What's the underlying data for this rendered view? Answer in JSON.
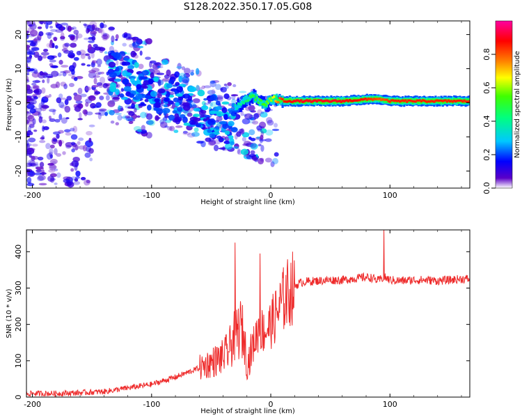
{
  "title": "S128.2022.350.17.05.G08",
  "chart_data": [
    {
      "type": "heatmap",
      "xlabel": "Height of straight line (km)",
      "ylabel": "Frequency (Hz)",
      "xlim": [
        -205,
        167
      ],
      "ylim": [
        -25,
        24
      ],
      "xticks": [
        -200,
        -100,
        0,
        100
      ],
      "yticks": [
        -20,
        -10,
        0,
        10,
        20
      ],
      "colorbar": {
        "label": "Normalized spectral amplitude",
        "range": [
          0.0,
          1.0
        ],
        "ticks": [
          0.0,
          0.2,
          0.4,
          0.6,
          0.8
        ],
        "colors": [
          "#ffffff",
          "#5a00c8",
          "#0000ff",
          "#00c8ff",
          "#00ff80",
          "#40ff00",
          "#ffff00",
          "#ff8000",
          "#ff0000",
          "#ff00a0"
        ]
      },
      "trace": {
        "description": "dominant spectral line",
        "x": [
          -30,
          -25,
          -20,
          -15,
          -10,
          -5,
          0,
          5,
          10,
          20,
          40,
          60,
          80,
          90,
          95,
          100,
          120,
          140,
          167
        ],
        "y": [
          -1.5,
          -0.5,
          1.0,
          2.0,
          0.5,
          -0.5,
          1.0,
          0.8,
          0.5,
          0.5,
          0.5,
          0.5,
          1.0,
          1.2,
          0.8,
          0.5,
          0.5,
          0.5,
          0.5
        ],
        "amplitude": [
          0.35,
          0.4,
          0.45,
          0.5,
          0.5,
          0.55,
          0.6,
          0.75,
          0.85,
          0.9,
          0.9,
          0.9,
          0.85,
          0.8,
          0.8,
          0.85,
          0.85,
          0.85,
          0.85
        ]
      }
    },
    {
      "type": "line",
      "xlabel": "Height of straight line (km)",
      "ylabel": "SNR (10 * v/v)",
      "xlim": [
        -205,
        167
      ],
      "ylim": [
        0,
        460
      ],
      "xticks": [
        -200,
        -100,
        0,
        100
      ],
      "yticks": [
        0,
        100,
        200,
        300,
        400
      ],
      "color": "#ee2a2a",
      "series": [
        {
          "x": [
            -205,
            -180,
            -160,
            -140,
            -120,
            -100,
            -80,
            -60,
            -50,
            -40,
            -35,
            -30,
            -25,
            -22,
            -20,
            -15,
            -10,
            -5,
            0,
            5,
            10,
            15,
            20,
            25,
            30,
            40,
            50,
            60,
            70,
            80,
            85,
            90,
            95,
            100,
            110,
            120,
            130,
            140,
            150,
            160,
            167
          ],
          "y": [
            10,
            10,
            12,
            15,
            25,
            35,
            55,
            80,
            95,
            110,
            130,
            170,
            190,
            160,
            85,
            140,
            190,
            180,
            200,
            230,
            265,
            290,
            305,
            315,
            318,
            320,
            322,
            322,
            326,
            330,
            328,
            320,
            330,
            322,
            320,
            322,
            322,
            320,
            322,
            325,
            325
          ]
        }
      ],
      "spikes": [
        {
          "x": -30,
          "y": 425
        },
        {
          "x": -9,
          "y": 395
        },
        {
          "x": 95,
          "y": 460
        }
      ]
    }
  ]
}
